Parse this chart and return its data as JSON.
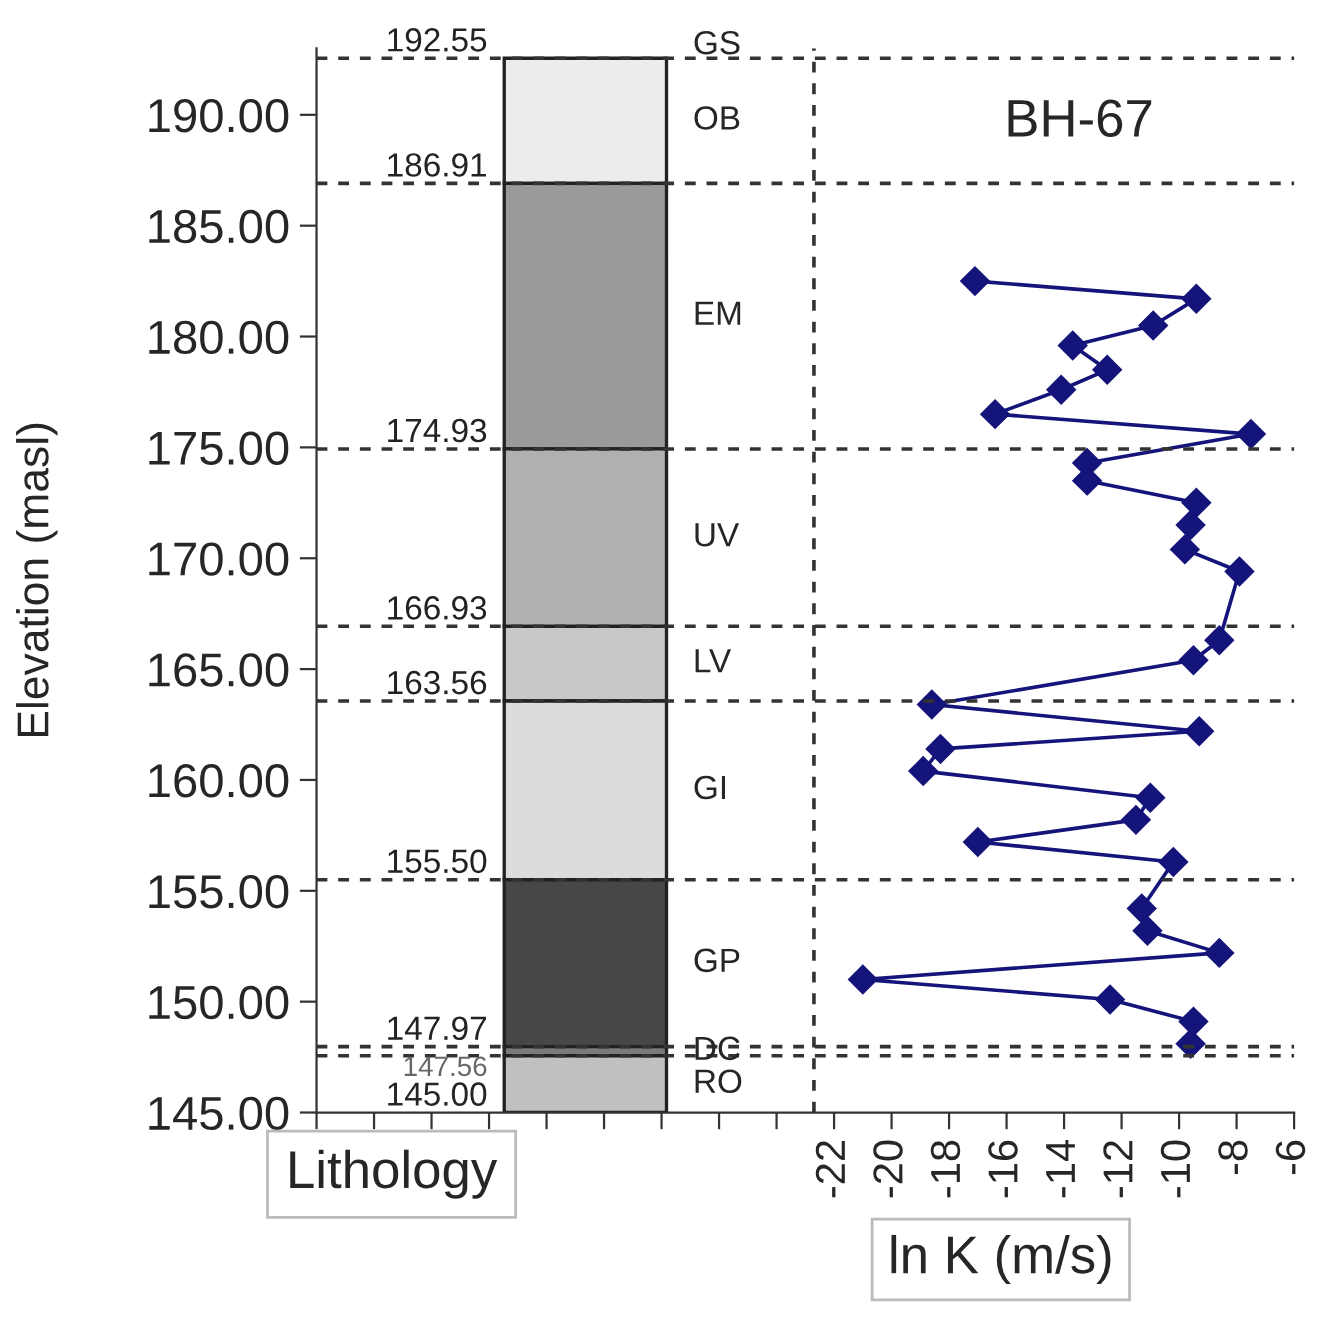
{
  "chart_data": {
    "type": "line",
    "orientation": "horizontal",
    "title": "BH-67",
    "xlabel": "ln K (m/s)",
    "ylabel": "Elevation (masl)",
    "series": [
      {
        "color": "#14147a",
        "marker": "diamond",
        "x": [
          182.5,
          181.7,
          180.5,
          179.6,
          178.5,
          177.6,
          176.5,
          175.6,
          174.3,
          173.5,
          172.5,
          171.5,
          170.4,
          169.4,
          166.3,
          165.4,
          163.4,
          162.2,
          161.4,
          160.4,
          159.2,
          158.2,
          157.2,
          156.3,
          154.2,
          153.2,
          152.2,
          151.0,
          150.1,
          149.1,
          148.1
        ],
        "values": [
          -17.1,
          -9.4,
          -10.9,
          -13.7,
          -12.5,
          -14.1,
          -16.4,
          -7.5,
          -13.2,
          -13.2,
          -9.4,
          -9.6,
          -9.8,
          -7.9,
          -8.6,
          -9.5,
          -18.6,
          -9.3,
          -18.3,
          -18.9,
          -11.0,
          -11.5,
          -17.0,
          -10.2,
          -11.3,
          -11.1,
          -8.6,
          -21.0,
          -12.4,
          -9.5,
          -9.6
        ]
      }
    ],
    "xlim": [
      -40,
      -6
    ],
    "xticks": [
      {
        "value": -40,
        "label": null
      },
      {
        "value": -38,
        "label": null
      },
      {
        "value": -36,
        "label": null
      },
      {
        "value": -34,
        "label": null
      },
      {
        "value": -32,
        "label": null
      },
      {
        "value": -30,
        "label": null
      },
      {
        "value": -28,
        "label": null
      },
      {
        "value": -26,
        "label": null
      },
      {
        "value": -24,
        "label": null
      },
      -22,
      -20,
      -18,
      -16,
      -14,
      -12,
      -10,
      -8,
      -6
    ],
    "ylim": [
      145,
      193
    ],
    "yticks": [
      {
        "value": 145,
        "label": "145.00"
      },
      {
        "value": 150,
        "label": "150.00"
      },
      {
        "value": 155,
        "label": "155.00"
      },
      {
        "value": 160,
        "label": "160.00"
      },
      {
        "value": 165,
        "label": "165.00"
      },
      {
        "value": 170,
        "label": "170.00"
      },
      {
        "value": 175,
        "label": "175.00"
      },
      {
        "value": 180,
        "label": "180.00"
      },
      {
        "value": 185,
        "label": "185.00"
      },
      {
        "value": 190,
        "label": "190.00"
      }
    ],
    "bands": [
      {
        "axis": "y",
        "from": 186.91,
        "to": 192.55,
        "label": "OB",
        "color": "#ececec"
      },
      {
        "axis": "y",
        "from": 174.93,
        "to": 186.91,
        "label": "EM",
        "color": "#9a9a9a"
      },
      {
        "axis": "y",
        "from": 166.93,
        "to": 174.93,
        "label": "UV",
        "color": "#b0b0b0"
      },
      {
        "axis": "y",
        "from": 163.56,
        "to": 166.93,
        "label": "LV",
        "color": "#c8c8c8"
      },
      {
        "axis": "y",
        "from": 155.5,
        "to": 163.56,
        "label": "GI",
        "color": "#dcdcdc"
      },
      {
        "axis": "y",
        "from": 147.97,
        "to": 155.5,
        "label": "GP",
        "color": "#474747"
      },
      {
        "axis": "y",
        "from": 147.56,
        "to": 147.97,
        "label": "DC",
        "color": "#7a7a7a"
      },
      {
        "axis": "y",
        "from": 145.0,
        "to": 147.56,
        "label": "RO",
        "color": "#c0c0c0"
      }
    ],
    "ref_lines": [
      {
        "axis": "y",
        "value": 192.55,
        "label": "192.55",
        "line_style": "dashed"
      },
      {
        "axis": "y",
        "value": 186.91,
        "label": "186.91",
        "line_style": "dashed"
      },
      {
        "axis": "y",
        "value": 174.93,
        "label": "174.93",
        "line_style": "dashed"
      },
      {
        "axis": "y",
        "value": 166.93,
        "label": "166.93",
        "line_style": "dashed"
      },
      {
        "axis": "y",
        "value": 163.56,
        "label": "163.56",
        "line_style": "dashed"
      },
      {
        "axis": "y",
        "value": 155.5,
        "label": "155.50",
        "line_style": "dashed"
      },
      {
        "axis": "y",
        "value": 147.97,
        "label": "147.97",
        "line_style": "dashed"
      },
      {
        "axis": "y",
        "value": 147.56,
        "label": "147.56",
        "line_style": "dashed"
      },
      {
        "axis": "x",
        "value": -22.7,
        "line_style": "dashed"
      }
    ],
    "annotations": [
      "GS",
      "145.00",
      "Lithology"
    ],
    "grid": false,
    "legend": false
  }
}
